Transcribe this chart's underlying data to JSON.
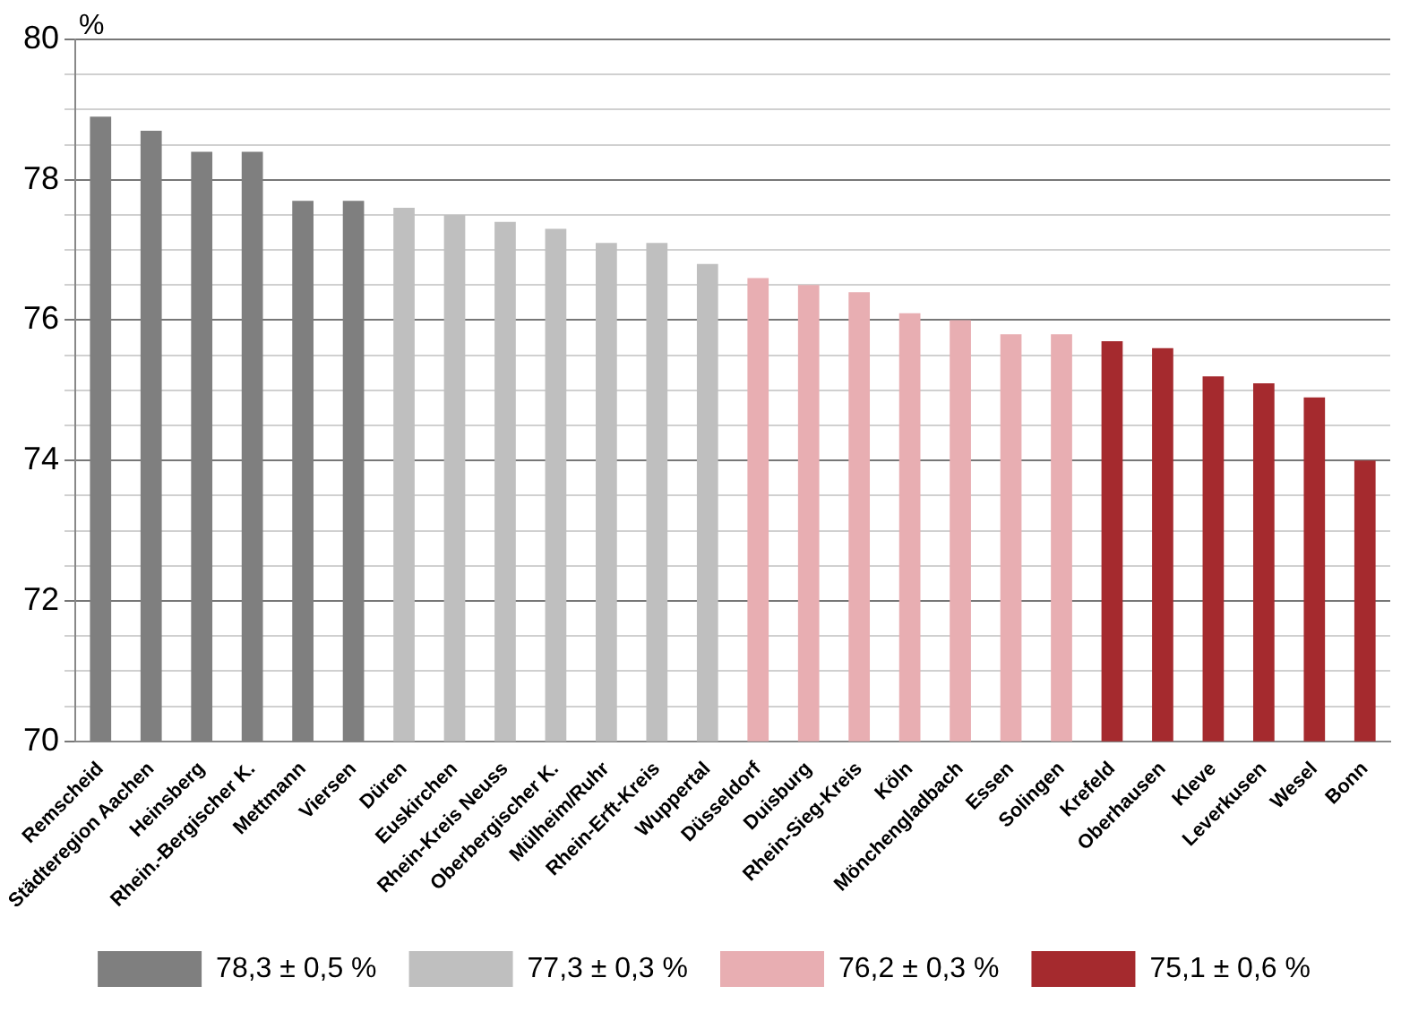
{
  "chart_data": {
    "type": "bar",
    "ylabel": "%",
    "categories": [
      "Remscheid",
      "Städteregion Aachen",
      "Heinsberg",
      "Rhein.-Bergischer K.",
      "Mettmann",
      "Viersen",
      "Düren",
      "Euskirchen",
      "Rhein-Kreis Neuss",
      "Oberbergischer K.",
      "Mülheim/Ruhr",
      "Rhein-Erft-Kreis",
      "Wuppertal",
      "Düsseldorf",
      "Duisburg",
      "Rhein-Sieg-Kreis",
      "Köln",
      "Mönchengladbach",
      "Essen",
      "Solingen",
      "Krefeld",
      "Oberhausen",
      "Kleve",
      "Leverkusen",
      "Wesel",
      "Bonn"
    ],
    "series": [
      {
        "name": "78,3 ± 0,5 %",
        "color": "#7f7f7f",
        "values": [
          78.9,
          78.7,
          78.4,
          78.4,
          77.7,
          77.7,
          null,
          null,
          null,
          null,
          null,
          null,
          null,
          null,
          null,
          null,
          null,
          null,
          null,
          null,
          null,
          null,
          null,
          null,
          null,
          null
        ]
      },
      {
        "name": "77,3 ± 0,3 %",
        "color": "#bfbfbf",
        "values": [
          null,
          null,
          null,
          null,
          null,
          null,
          77.6,
          77.5,
          77.4,
          77.3,
          77.1,
          77.1,
          76.8,
          null,
          null,
          null,
          null,
          null,
          null,
          null,
          null,
          null,
          null,
          null,
          null,
          null
        ]
      },
      {
        "name": "76,2 ± 0,3 %",
        "color": "#e8aeb2",
        "values": [
          null,
          null,
          null,
          null,
          null,
          null,
          null,
          null,
          null,
          null,
          null,
          null,
          null,
          76.6,
          76.5,
          76.4,
          76.1,
          76.0,
          75.8,
          75.8,
          null,
          null,
          null,
          null,
          null,
          null
        ]
      },
      {
        "name": "75,1 ± 0,6 %",
        "color": "#a52a2e",
        "values": [
          null,
          null,
          null,
          null,
          null,
          null,
          null,
          null,
          null,
          null,
          null,
          null,
          null,
          null,
          null,
          null,
          null,
          null,
          null,
          null,
          75.7,
          75.6,
          75.2,
          75.1,
          74.9,
          74.0
        ]
      }
    ],
    "ylim": [
      70,
      80
    ],
    "yticks": [
      70,
      {
        "value": 70.5,
        "label": null
      },
      {
        "value": 71,
        "label": null
      },
      {
        "value": 71.5,
        "label": null
      },
      72,
      {
        "value": 72.5,
        "label": null
      },
      {
        "value": 73,
        "label": null
      },
      {
        "value": 73.5,
        "label": null
      },
      74,
      {
        "value": 74.5,
        "label": null
      },
      {
        "value": 75,
        "label": null
      },
      {
        "value": 75.5,
        "label": null
      },
      76,
      {
        "value": 76.5,
        "label": null
      },
      {
        "value": 77,
        "label": null
      },
      {
        "value": 77.5,
        "label": null
      },
      78,
      {
        "value": 78.5,
        "label": null
      },
      {
        "value": 79,
        "label": null
      },
      {
        "value": 79.5,
        "label": null
      },
      80
    ],
    "grid": "y",
    "legend": "bottom"
  }
}
